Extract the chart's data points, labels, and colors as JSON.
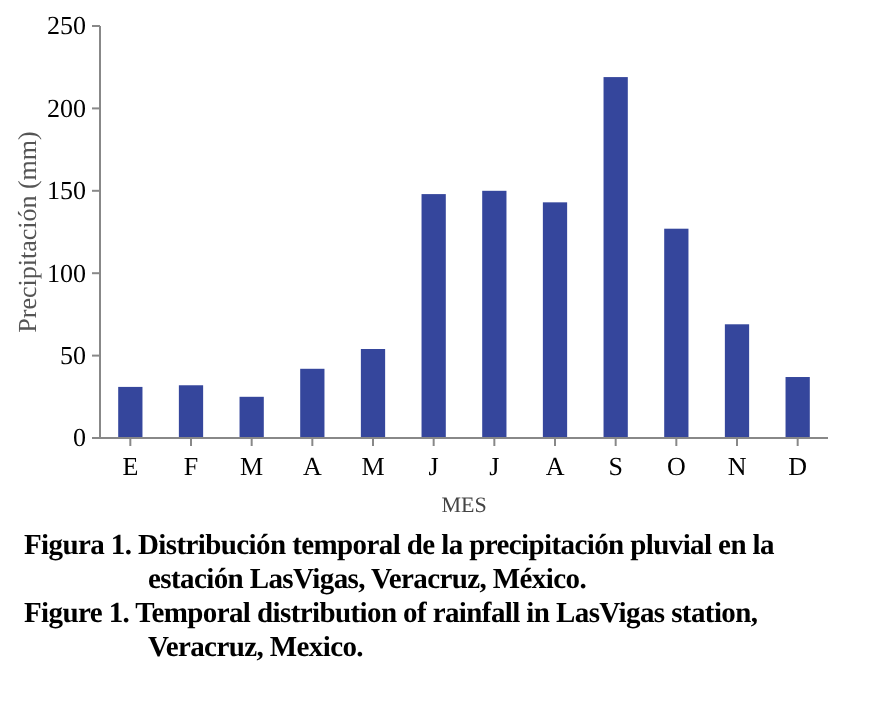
{
  "chart_data": {
    "type": "bar",
    "xlabel": "MES",
    "ylabel": "Precipitación (mm)",
    "categories": [
      "E",
      "F",
      "M",
      "A",
      "M",
      "J",
      "J",
      "A",
      "S",
      "O",
      "N",
      "D"
    ],
    "values": [
      31,
      32,
      25,
      42,
      54,
      148,
      150,
      143,
      219,
      127,
      69,
      37
    ],
    "color": "#35469c",
    "ylim": [
      0,
      250
    ],
    "yticks": [
      0,
      50,
      100,
      150,
      200,
      250
    ],
    "grid": false,
    "annotations": [
      "Figura 1. Distribución temporal de la precipitación pluvial en la estación LasVigas, Veracruz, México.",
      "Figure 1. Temporal distribution of rainfall in LasVigas station, Veracruz, Mexico."
    ]
  }
}
